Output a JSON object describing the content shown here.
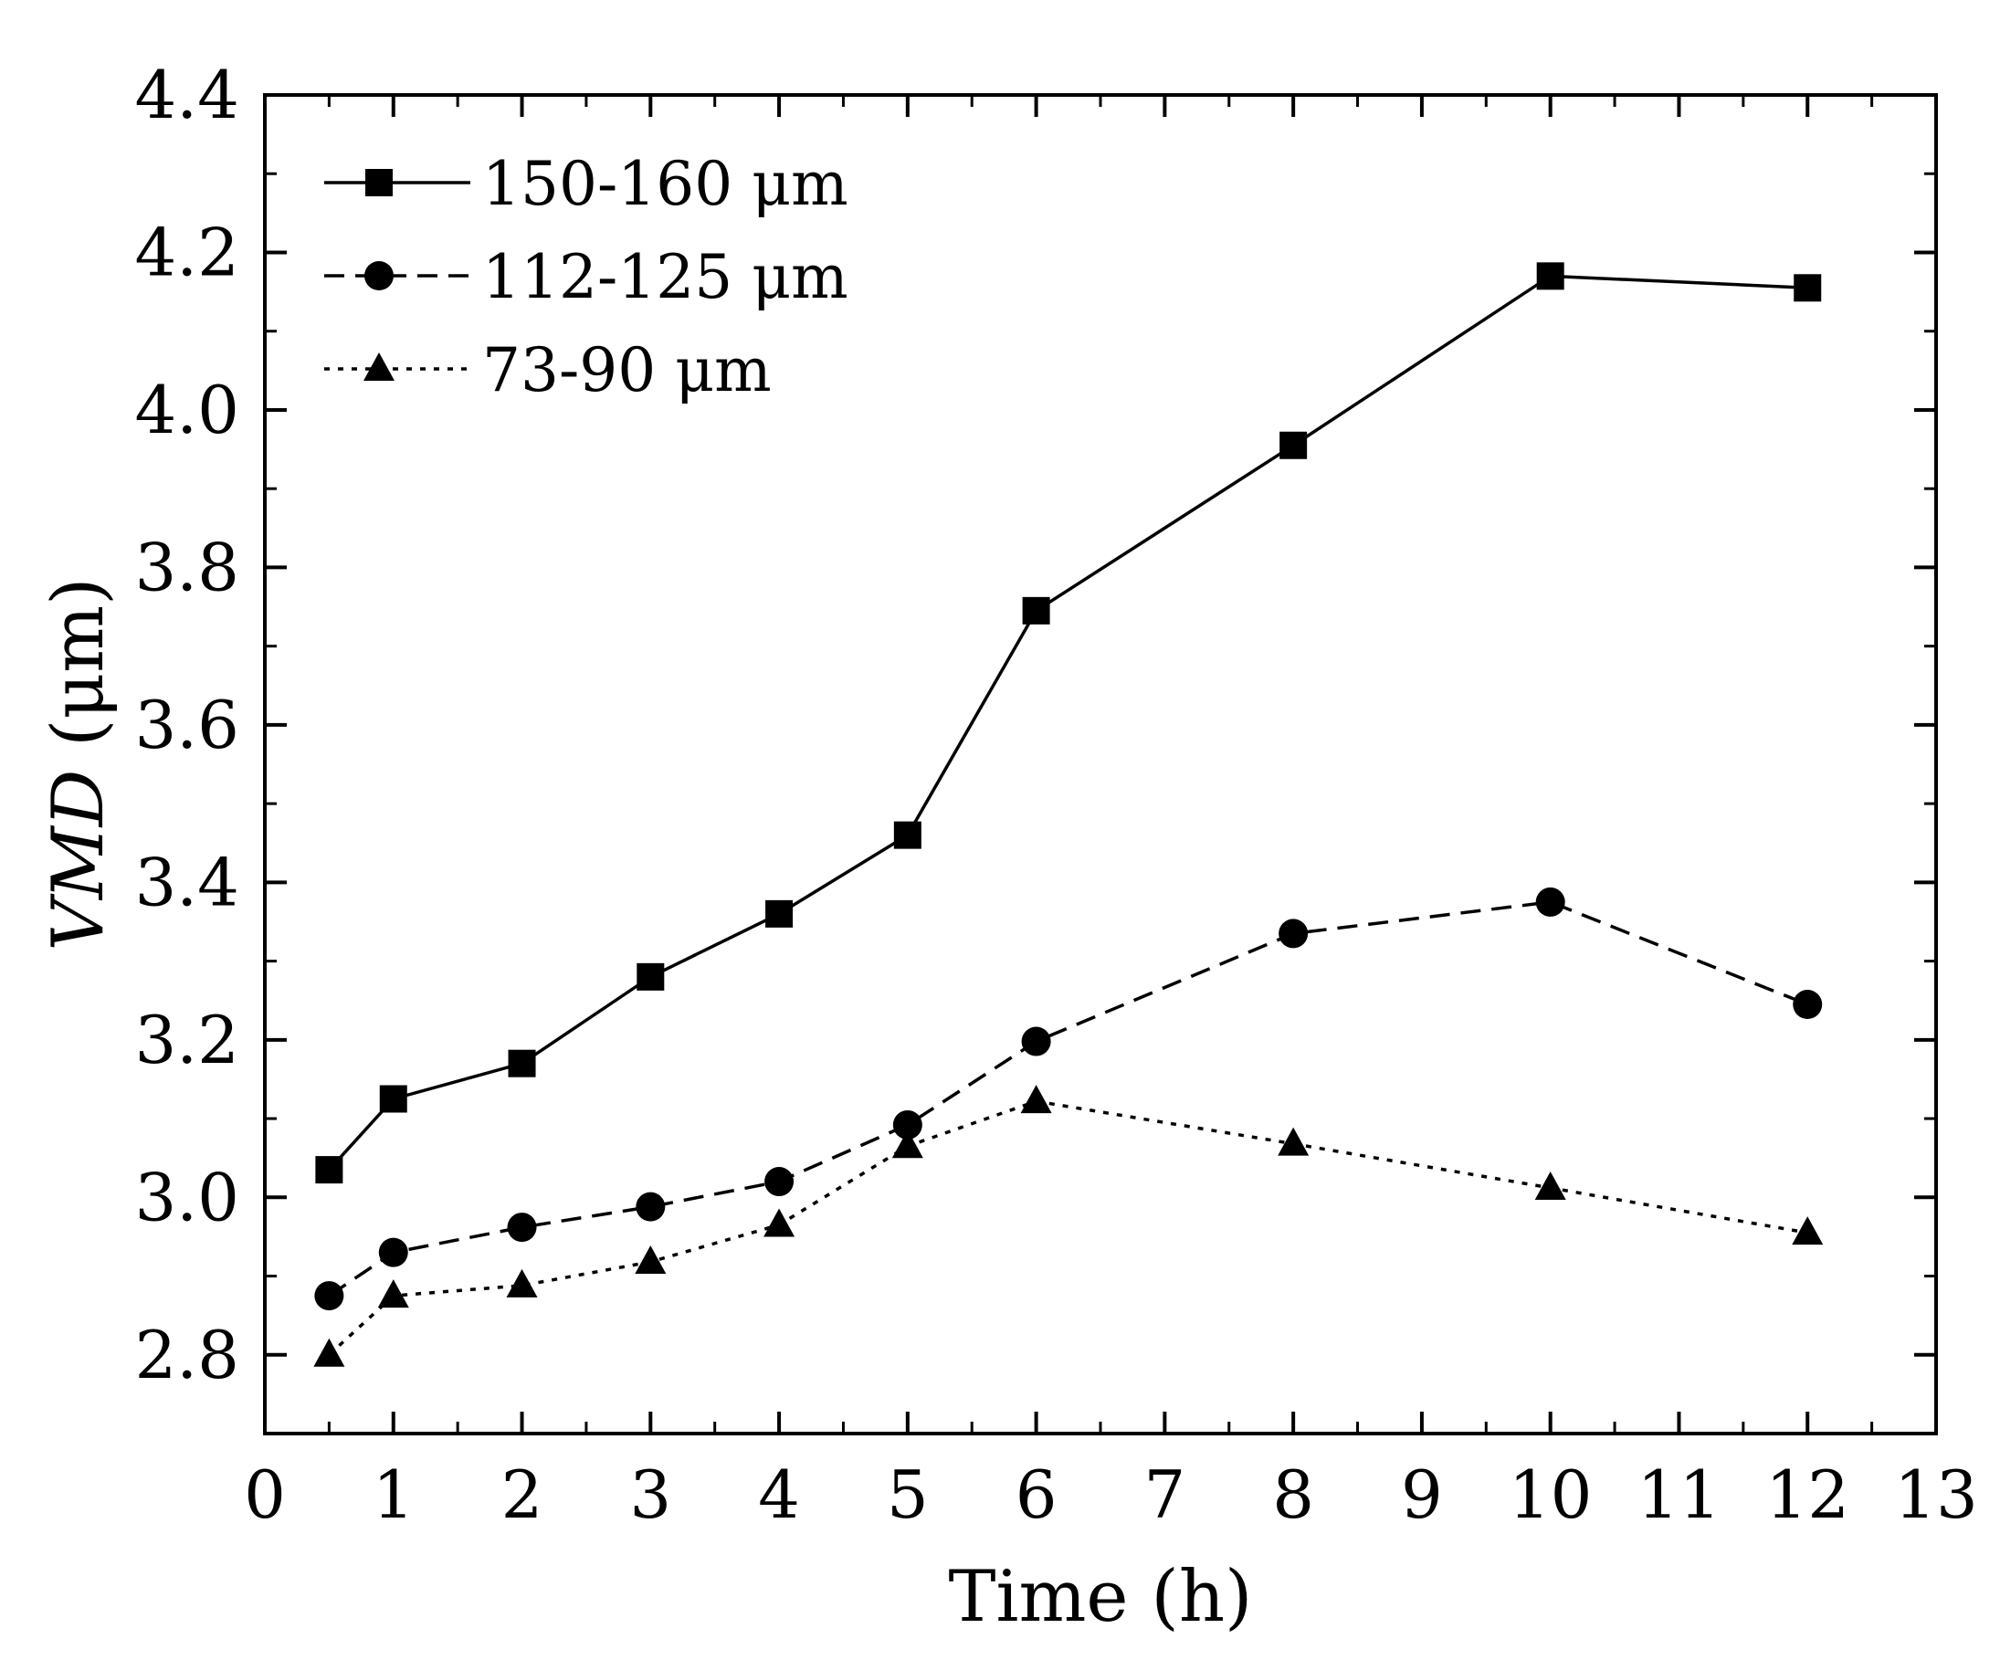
{
  "chart_data": {
    "type": "line",
    "title": "",
    "xlabel": "Time (h)",
    "ylabel": {
      "italic": "VMD",
      "rest": " (μm)"
    },
    "xlim": [
      0,
      13
    ],
    "ylim": [
      2.7,
      4.4
    ],
    "xticks": [
      0,
      1,
      2,
      3,
      4,
      5,
      6,
      7,
      8,
      9,
      10,
      11,
      12,
      13
    ],
    "yticks": [
      2.8,
      3.0,
      3.2,
      3.4,
      3.6,
      3.8,
      4.0,
      4.2,
      4.4
    ],
    "grid": false,
    "legend_position": "top-left",
    "series": [
      {
        "name": "150-160 μm",
        "marker": "square",
        "line_style": "solid",
        "x": [
          0.5,
          1,
          2,
          3,
          4,
          5,
          6,
          8,
          10,
          12
        ],
        "y": [
          3.035,
          3.125,
          3.17,
          3.28,
          3.36,
          3.46,
          3.745,
          3.955,
          4.17,
          4.155
        ]
      },
      {
        "name": "112-125 μm",
        "marker": "circle",
        "line_style": "dashed",
        "x": [
          0.5,
          1,
          2,
          3,
          4,
          5,
          6,
          8,
          10,
          12
        ],
        "y": [
          2.875,
          2.93,
          2.962,
          2.988,
          3.02,
          3.092,
          3.198,
          3.335,
          3.375,
          3.245
        ]
      },
      {
        "name": "73-90 μm",
        "marker": "triangle",
        "line_style": "dotted",
        "x": [
          0.5,
          1,
          2,
          3,
          4,
          5,
          6,
          8,
          10,
          12
        ],
        "y": [
          2.8,
          2.875,
          2.888,
          2.918,
          2.965,
          3.065,
          3.122,
          3.068,
          3.012,
          2.955
        ]
      }
    ]
  }
}
